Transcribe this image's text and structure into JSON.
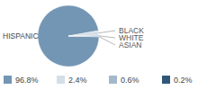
{
  "chart_data": {
    "type": "pie",
    "categories": [
      "HISPANIC",
      "BLACK",
      "WHITE",
      "ASIAN"
    ],
    "values": [
      96.8,
      2.4,
      0.6,
      0.2
    ],
    "value_labels": [
      "96.8%",
      "2.4%",
      "0.6%",
      "0.2%"
    ],
    "colors": [
      "#7396b4",
      "#d3dfe8",
      "#a3b8cb",
      "#2f5778"
    ],
    "legend": "bottom"
  }
}
